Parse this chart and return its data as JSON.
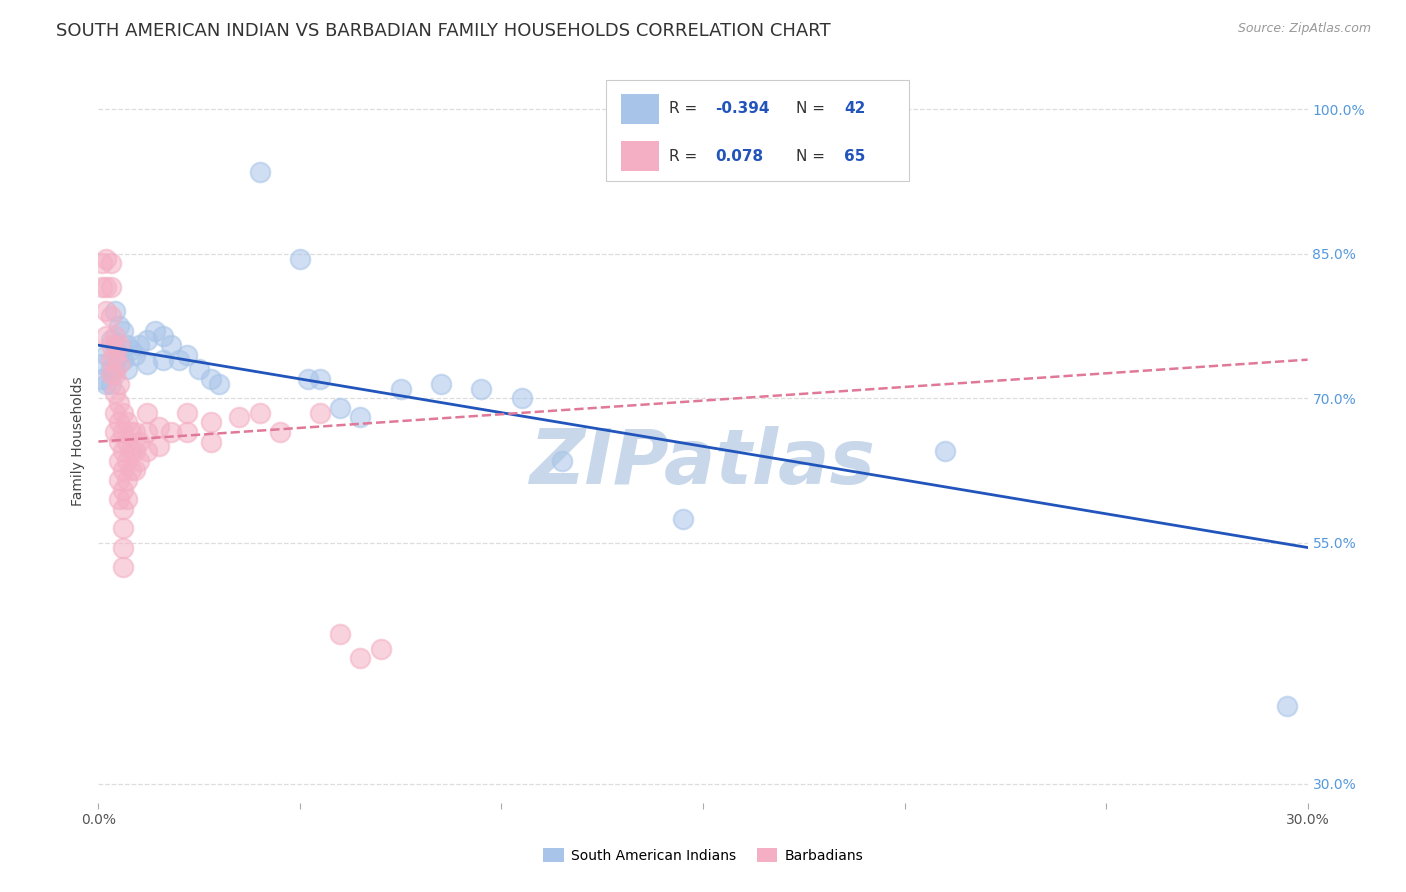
{
  "title": "SOUTH AMERICAN INDIAN VS BARBADIAN FAMILY HOUSEHOLDS CORRELATION CHART",
  "source": "Source: ZipAtlas.com",
  "ylabel": "Family Households",
  "watermark_text": "ZIPatlas",
  "legend_blue_r": "-0.394",
  "legend_blue_n": "42",
  "legend_pink_r": "0.078",
  "legend_pink_n": "65",
  "blue_scatter": [
    [
      0.001,
      0.735
    ],
    [
      0.001,
      0.72
    ],
    [
      0.002,
      0.745
    ],
    [
      0.002,
      0.715
    ],
    [
      0.003,
      0.76
    ],
    [
      0.003,
      0.73
    ],
    [
      0.003,
      0.715
    ],
    [
      0.004,
      0.79
    ],
    [
      0.004,
      0.755
    ],
    [
      0.004,
      0.73
    ],
    [
      0.005,
      0.775
    ],
    [
      0.005,
      0.745
    ],
    [
      0.006,
      0.77
    ],
    [
      0.006,
      0.74
    ],
    [
      0.007,
      0.755
    ],
    [
      0.007,
      0.73
    ],
    [
      0.008,
      0.75
    ],
    [
      0.009,
      0.745
    ],
    [
      0.01,
      0.755
    ],
    [
      0.012,
      0.76
    ],
    [
      0.012,
      0.735
    ],
    [
      0.014,
      0.77
    ],
    [
      0.016,
      0.765
    ],
    [
      0.016,
      0.74
    ],
    [
      0.018,
      0.755
    ],
    [
      0.02,
      0.74
    ],
    [
      0.022,
      0.745
    ],
    [
      0.025,
      0.73
    ],
    [
      0.028,
      0.72
    ],
    [
      0.03,
      0.715
    ],
    [
      0.04,
      0.935
    ],
    [
      0.05,
      0.845
    ],
    [
      0.052,
      0.72
    ],
    [
      0.055,
      0.72
    ],
    [
      0.06,
      0.69
    ],
    [
      0.065,
      0.68
    ],
    [
      0.075,
      0.71
    ],
    [
      0.085,
      0.715
    ],
    [
      0.095,
      0.71
    ],
    [
      0.105,
      0.7
    ],
    [
      0.115,
      0.635
    ],
    [
      0.145,
      0.575
    ],
    [
      0.21,
      0.645
    ],
    [
      0.295,
      0.38
    ]
  ],
  "pink_scatter": [
    [
      0.001,
      0.84
    ],
    [
      0.001,
      0.815
    ],
    [
      0.002,
      0.845
    ],
    [
      0.002,
      0.815
    ],
    [
      0.002,
      0.79
    ],
    [
      0.002,
      0.765
    ],
    [
      0.003,
      0.84
    ],
    [
      0.003,
      0.815
    ],
    [
      0.003,
      0.785
    ],
    [
      0.003,
      0.755
    ],
    [
      0.003,
      0.74
    ],
    [
      0.003,
      0.725
    ],
    [
      0.004,
      0.765
    ],
    [
      0.004,
      0.745
    ],
    [
      0.004,
      0.725
    ],
    [
      0.004,
      0.705
    ],
    [
      0.004,
      0.685
    ],
    [
      0.004,
      0.665
    ],
    [
      0.005,
      0.755
    ],
    [
      0.005,
      0.735
    ],
    [
      0.005,
      0.715
    ],
    [
      0.005,
      0.695
    ],
    [
      0.005,
      0.675
    ],
    [
      0.005,
      0.655
    ],
    [
      0.005,
      0.635
    ],
    [
      0.005,
      0.615
    ],
    [
      0.005,
      0.595
    ],
    [
      0.006,
      0.685
    ],
    [
      0.006,
      0.665
    ],
    [
      0.006,
      0.645
    ],
    [
      0.006,
      0.625
    ],
    [
      0.006,
      0.605
    ],
    [
      0.006,
      0.585
    ],
    [
      0.006,
      0.565
    ],
    [
      0.006,
      0.545
    ],
    [
      0.006,
      0.525
    ],
    [
      0.007,
      0.675
    ],
    [
      0.007,
      0.655
    ],
    [
      0.007,
      0.635
    ],
    [
      0.007,
      0.615
    ],
    [
      0.007,
      0.595
    ],
    [
      0.008,
      0.665
    ],
    [
      0.008,
      0.645
    ],
    [
      0.008,
      0.625
    ],
    [
      0.009,
      0.665
    ],
    [
      0.009,
      0.645
    ],
    [
      0.009,
      0.625
    ],
    [
      0.01,
      0.655
    ],
    [
      0.01,
      0.635
    ],
    [
      0.012,
      0.685
    ],
    [
      0.012,
      0.665
    ],
    [
      0.012,
      0.645
    ],
    [
      0.015,
      0.67
    ],
    [
      0.015,
      0.65
    ],
    [
      0.018,
      0.665
    ],
    [
      0.022,
      0.685
    ],
    [
      0.022,
      0.665
    ],
    [
      0.028,
      0.675
    ],
    [
      0.028,
      0.655
    ],
    [
      0.035,
      0.68
    ],
    [
      0.04,
      0.685
    ],
    [
      0.045,
      0.665
    ],
    [
      0.055,
      0.685
    ],
    [
      0.06,
      0.455
    ],
    [
      0.065,
      0.43
    ],
    [
      0.07,
      0.44
    ]
  ],
  "blue_line": [
    [
      0.0,
      0.755
    ],
    [
      0.3,
      0.545
    ]
  ],
  "pink_line": [
    [
      0.0,
      0.655
    ],
    [
      0.3,
      0.74
    ]
  ],
  "xmin": 0.0,
  "xmax": 0.3,
  "ymin": 0.28,
  "ymax": 1.03,
  "yticks": [
    0.3,
    0.55,
    0.7,
    0.85,
    1.0
  ],
  "ytick_labels": [
    "30.0%",
    "55.0%",
    "70.0%",
    "85.0%",
    "100.0%"
  ],
  "xticks": [
    0.0,
    0.05,
    0.1,
    0.15,
    0.2,
    0.25,
    0.3
  ],
  "xtick_labels_show": [
    "0.0%",
    "",
    "",
    "",
    "",
    "",
    "30.0%"
  ],
  "grid_color": "#dddddd",
  "blue_dot_color": "#a8c4e8",
  "blue_line_color": "#2255bb",
  "pink_dot_color": "#f4afc4",
  "pink_line_color": "#e07898",
  "background_color": "#ffffff",
  "title_color": "#333333",
  "title_fontsize": 13,
  "source_color": "#999999",
  "right_axis_color": "#5599dd",
  "watermark_color": "#c8d8ea",
  "watermark_fontsize": 55
}
